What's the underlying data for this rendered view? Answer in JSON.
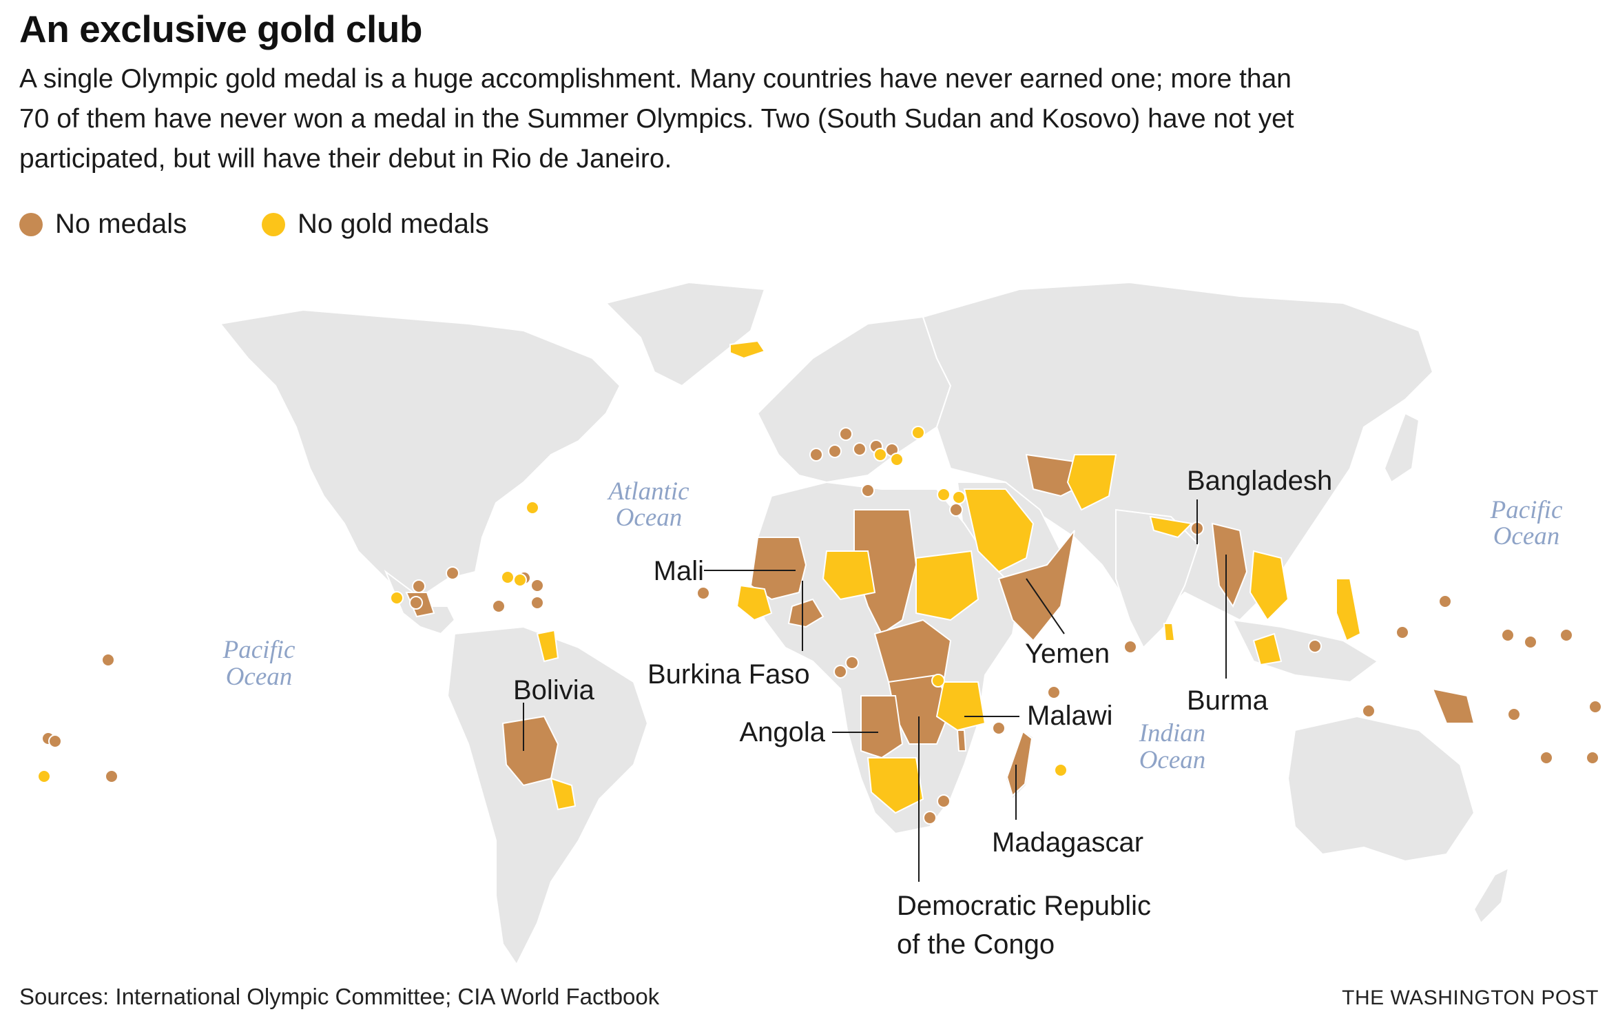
{
  "title": "An exclusive gold club",
  "subtitle": "A single Olympic gold medal is a huge accomplishment. Many countries have never earned one; more than 70 of them have never won a medal in the Summer Olympics. Two (South Sudan and Kosovo) have not yet participated, but will have their debut in Rio de Janeiro.",
  "legend": {
    "no_medals": {
      "label": "No medals",
      "color": "#c68a52"
    },
    "no_gold": {
      "label": "No gold medals",
      "color": "#fcc419"
    }
  },
  "colors": {
    "land": "#e6e6e6",
    "no_medals": "#c68a52",
    "no_gold": "#fcc419",
    "ocean_label": "#8ea3c7"
  },
  "oceans": {
    "atlantic": [
      "Atlantic",
      "Ocean"
    ],
    "pacific_west": [
      "Pacific",
      "Ocean"
    ],
    "pacific_east": [
      "Pacific",
      "Ocean"
    ],
    "indian": [
      "Indian",
      "Ocean"
    ]
  },
  "labels": {
    "mali": "Mali",
    "burkina_faso": "Burkina Faso",
    "angola": "Angola",
    "bolivia": "Bolivia",
    "drc_line1": "Democratic Republic",
    "drc_line2": "of the Congo",
    "malawi": "Malawi",
    "madagascar": "Madagascar",
    "yemen": "Yemen",
    "bangladesh": "Bangladesh",
    "burma": "Burma"
  },
  "source": "Sources: International Olympic Committee; CIA World Factbook",
  "credit": "THE WASHINGTON POST"
}
